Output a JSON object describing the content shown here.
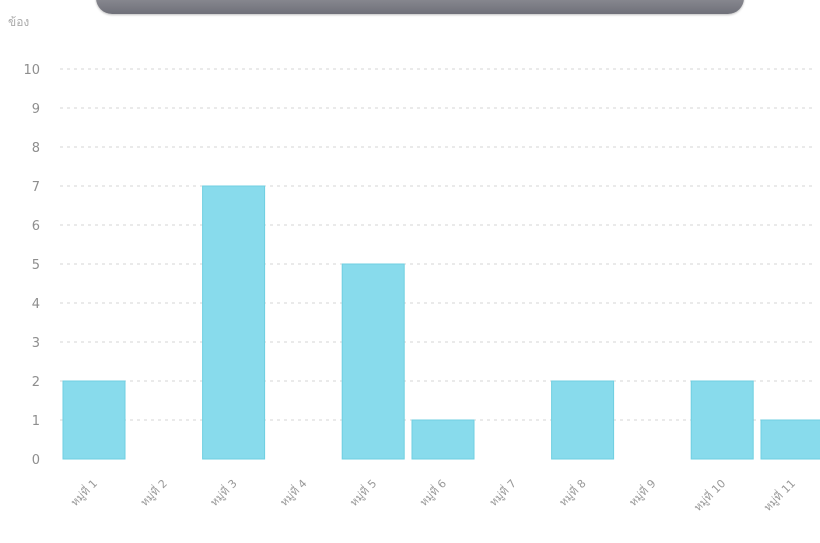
{
  "chart_data": {
    "type": "bar",
    "ylabel": "ข้อง",
    "ylim": [
      0,
      10
    ],
    "yticks": [
      0,
      1,
      2,
      3,
      4,
      5,
      6,
      7,
      8,
      9,
      10
    ],
    "categories": [
      "หมู่ที่ 1",
      "หมู่ที่ 2",
      "หมู่ที่ 3",
      "หมู่ที่ 4",
      "หมู่ที่ 5",
      "หมู่ที่ 6",
      "หมู่ที่ 7",
      "หมู่ที่ 8",
      "หมู่ที่ 9",
      "หมู่ที่ 10",
      "หมู่ที่ 11"
    ],
    "values": [
      2,
      0,
      7,
      0,
      5,
      1,
      0,
      2,
      0,
      2,
      1
    ],
    "grid": true,
    "bar_color": "#88dbec",
    "bar_edge_color": "#6fcfe2"
  }
}
